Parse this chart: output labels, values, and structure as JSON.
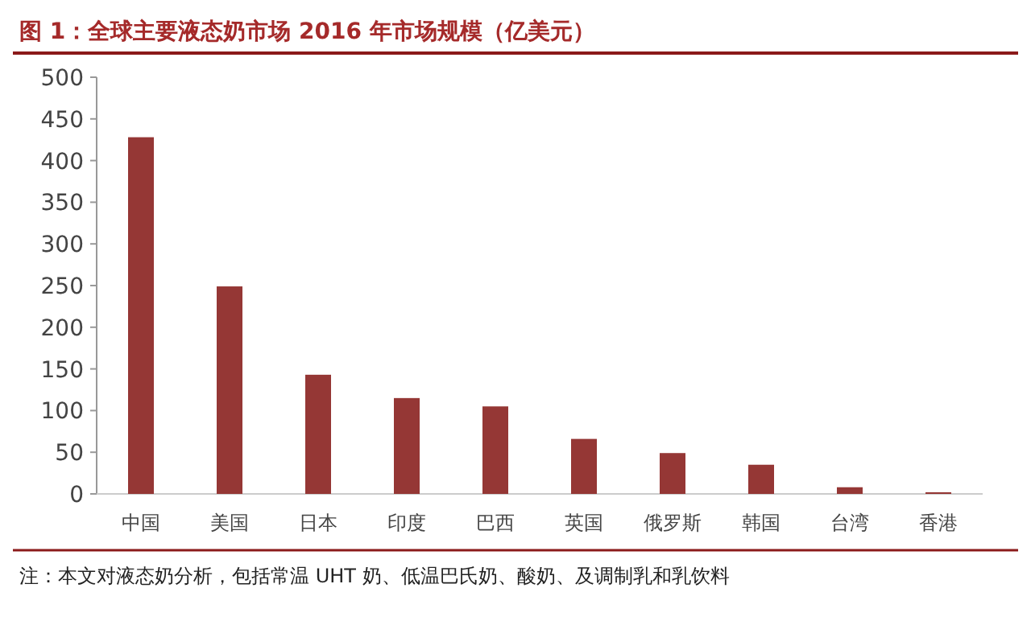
{
  "chart_data": {
    "type": "bar",
    "title": "图 1：全球主要液态奶市场 2016 年市场规模（亿美元）",
    "categories": [
      "中国",
      "美国",
      "日本",
      "印度",
      "巴西",
      "英国",
      "俄罗斯",
      "韩国",
      "台湾",
      "香港"
    ],
    "values": [
      428,
      249,
      143,
      115,
      105,
      66,
      49,
      35,
      8,
      2
    ],
    "color": "#953735",
    "ylim": [
      0,
      500
    ],
    "yticks": [
      0,
      50,
      100,
      150,
      200,
      250,
      300,
      350,
      400,
      450,
      500
    ],
    "grid": false,
    "annotations": [
      "注：本文对液态奶分析，包括常温 UHT 奶、低温巴氏奶、酸奶、及调制乳和乳饮料"
    ]
  }
}
